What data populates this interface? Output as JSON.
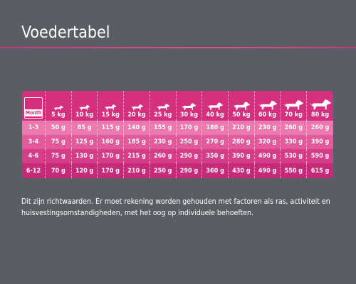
{
  "title": "Voedertabel",
  "accent_color": "#d5307e",
  "background_color": "#5a5e64",
  "table": {
    "corner_label": "Month",
    "weights": [
      "5 kg",
      "10 kg",
      "15 kg",
      "20 kg",
      "25 kg",
      "30 kg",
      "40 kg",
      "50 kg",
      "60 kg",
      "70 kg",
      "80 kg"
    ],
    "icon": "dog-icon",
    "rows": [
      {
        "age": "1-3",
        "values": [
          "50 g",
          "85 g",
          "115 g",
          "140 g",
          "155 g",
          "170 g",
          "180 g",
          "210 g",
          "230 g",
          "260 g",
          "260 g"
        ]
      },
      {
        "age": "3-4",
        "values": [
          "75 g",
          "125 g",
          "160 g",
          "185 g",
          "230 g",
          "250 g",
          "270 g",
          "280 g",
          "320 g",
          "330 g",
          "390 g"
        ]
      },
      {
        "age": "4-6",
        "values": [
          "75 g",
          "130 g",
          "170 g",
          "215 g",
          "260 g",
          "290 g",
          "350 g",
          "390 g",
          "490 g",
          "530 g",
          "590 g"
        ]
      },
      {
        "age": "6-12",
        "values": [
          "70 g",
          "120 g",
          "170 g",
          "210 g",
          "250 g",
          "290 g",
          "360 g",
          "430 g",
          "490 g",
          "550 g",
          "615 g"
        ]
      }
    ]
  },
  "note": "Dit zijn richtwaarden. Er moet rekening worden gehouden met factoren als ras, activiteit en huisvestingsomstandigheden, met het oog op individuele behoeften."
}
